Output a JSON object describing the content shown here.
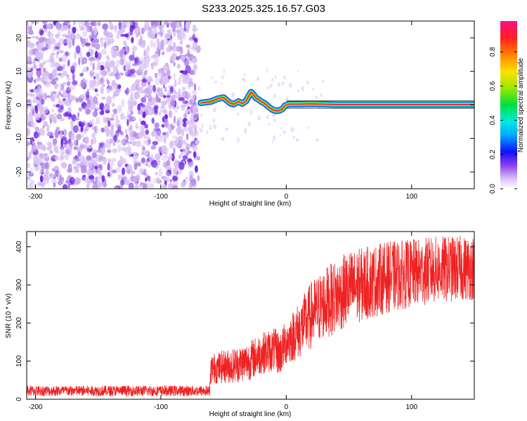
{
  "title": "S233.2025.325.16.57.G03",
  "colors": {
    "snr_line": "#ee2222",
    "axis": "#000000",
    "scatter_light": "#d7c0f4",
    "scatter_mid": "#b48ae8",
    "scatter_dark": "#6a1ee6"
  },
  "chart_data": [
    {
      "type": "heatmap",
      "name": "spectrogram",
      "xlabel": "Height of straight line (km)",
      "ylabel": "Frequency (Hz)",
      "xlim": [
        -207,
        150
      ],
      "ylim": [
        -25,
        25
      ],
      "xticks": [
        -200,
        -100,
        0,
        100
      ],
      "yticks": [
        -20,
        -10,
        0,
        10,
        20
      ],
      "noise_region_x": [
        -207,
        -70
      ],
      "ridge": [
        [
          -68,
          0.6
        ],
        [
          -60,
          1.0
        ],
        [
          -55,
          1.8
        ],
        [
          -50,
          2.2
        ],
        [
          -45,
          0.6
        ],
        [
          -42,
          0.2
        ],
        [
          -38,
          1.0
        ],
        [
          -35,
          0.4
        ],
        [
          -32,
          1.2
        ],
        [
          -30,
          2.6
        ],
        [
          -28,
          3.8
        ],
        [
          -26,
          3.0
        ],
        [
          -24,
          2.0
        ],
        [
          -22,
          1.6
        ],
        [
          -20,
          1.0
        ],
        [
          -17,
          0.4
        ],
        [
          -14,
          -0.6
        ],
        [
          -11,
          -1.4
        ],
        [
          -8,
          -1.8
        ],
        [
          -5,
          -1.6
        ],
        [
          -3,
          -1.2
        ],
        [
          -1,
          -0.2
        ],
        [
          2,
          0.2
        ],
        [
          10,
          0.2
        ],
        [
          20,
          0.3
        ],
        [
          30,
          0.2
        ],
        [
          40,
          0.1
        ],
        [
          60,
          0.1
        ],
        [
          80,
          0.1
        ],
        [
          100,
          0.1
        ],
        [
          120,
          0.1
        ],
        [
          150,
          0.1
        ]
      ],
      "colorbar": {
        "label": "Normalized spectral amplitude",
        "ticks": [
          "0.0",
          "0.2",
          "0.4",
          "0.6",
          "0.8"
        ],
        "range": [
          0,
          0.98
        ]
      }
    },
    {
      "type": "line",
      "name": "snr",
      "xlabel": "Height of straight line (km)",
      "ylabel": "SNR (10 * v/v)",
      "xlim": [
        -207,
        150
      ],
      "ylim": [
        0,
        440
      ],
      "xticks": [
        -200,
        -100,
        0,
        100
      ],
      "yticks": [
        0,
        100,
        200,
        300,
        400
      ],
      "envelope": [
        [
          -207,
          22
        ],
        [
          -150,
          22
        ],
        [
          -100,
          22
        ],
        [
          -61,
          22
        ],
        [
          -60,
          80
        ],
        [
          -50,
          85
        ],
        [
          -40,
          90
        ],
        [
          -30,
          100
        ],
        [
          -20,
          120
        ],
        [
          -10,
          130
        ],
        [
          -5,
          120
        ],
        [
          0,
          150
        ],
        [
          10,
          180
        ],
        [
          20,
          220
        ],
        [
          30,
          250
        ],
        [
          40,
          270
        ],
        [
          50,
          290
        ],
        [
          60,
          300
        ],
        [
          80,
          320
        ],
        [
          100,
          330
        ],
        [
          120,
          340
        ],
        [
          150,
          345
        ]
      ],
      "spread": [
        [
          -207,
          12
        ],
        [
          -61,
          12
        ],
        [
          -60,
          40
        ],
        [
          -20,
          55
        ],
        [
          0,
          60
        ],
        [
          20,
          90
        ],
        [
          50,
          100
        ],
        [
          100,
          90
        ],
        [
          150,
          85
        ]
      ],
      "series_color": "#ee2222"
    }
  ]
}
